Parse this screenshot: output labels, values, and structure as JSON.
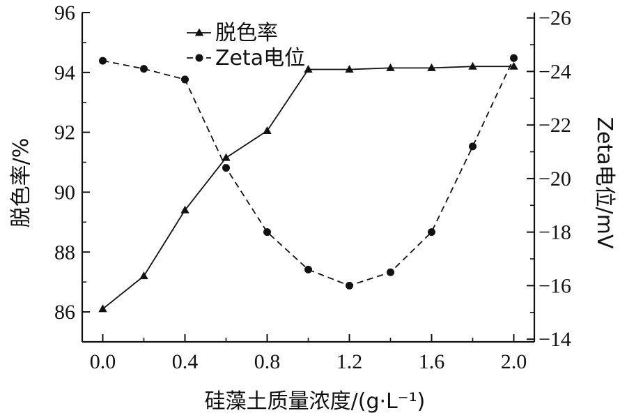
{
  "chart_data": {
    "type": "line",
    "title": "",
    "x": [
      0.0,
      0.2,
      0.4,
      0.6,
      0.8,
      1.0,
      1.2,
      1.4,
      1.6,
      1.8,
      2.0
    ],
    "xlabel": "硅藻土质量浓度/(g·L⁻¹)",
    "xlim": [
      -0.1,
      2.1
    ],
    "xticks": [
      "0.0",
      "0.4",
      "0.8",
      "1.2",
      "1.6",
      "2.0"
    ],
    "xtick_values": [
      0.0,
      0.4,
      0.8,
      1.2,
      1.6,
      2.0
    ],
    "y_left": {
      "label": "脱色率/%",
      "lim": [
        85,
        96
      ],
      "ticks": [
        "86",
        "88",
        "90",
        "92",
        "94",
        "96"
      ],
      "tick_values": [
        86,
        88,
        90,
        92,
        94,
        96
      ]
    },
    "y_right": {
      "label": "Zeta电位/mV",
      "lim": [
        -13.9,
        -26.2
      ],
      "ticks": [
        "−14",
        "−16",
        "−18",
        "−20",
        "−22",
        "−24",
        "−26"
      ],
      "tick_values": [
        -14,
        -16,
        -18,
        -20,
        -22,
        -24,
        -26
      ]
    },
    "series": [
      {
        "name": "脱色率",
        "axis": "left",
        "marker": "triangle",
        "line": "solid",
        "values": [
          86.1,
          87.2,
          89.4,
          91.15,
          92.05,
          94.1,
          94.1,
          94.15,
          94.15,
          94.2,
          94.2
        ]
      },
      {
        "name": "Zeta电位",
        "axis": "right",
        "marker": "circle",
        "line": "dashed",
        "values": [
          -24.4,
          -24.1,
          -23.7,
          -20.4,
          -18.0,
          -16.6,
          -16.0,
          -16.5,
          -18.0,
          -21.2,
          -24.5
        ]
      }
    ],
    "legend_position": "top-left",
    "grid": false
  }
}
